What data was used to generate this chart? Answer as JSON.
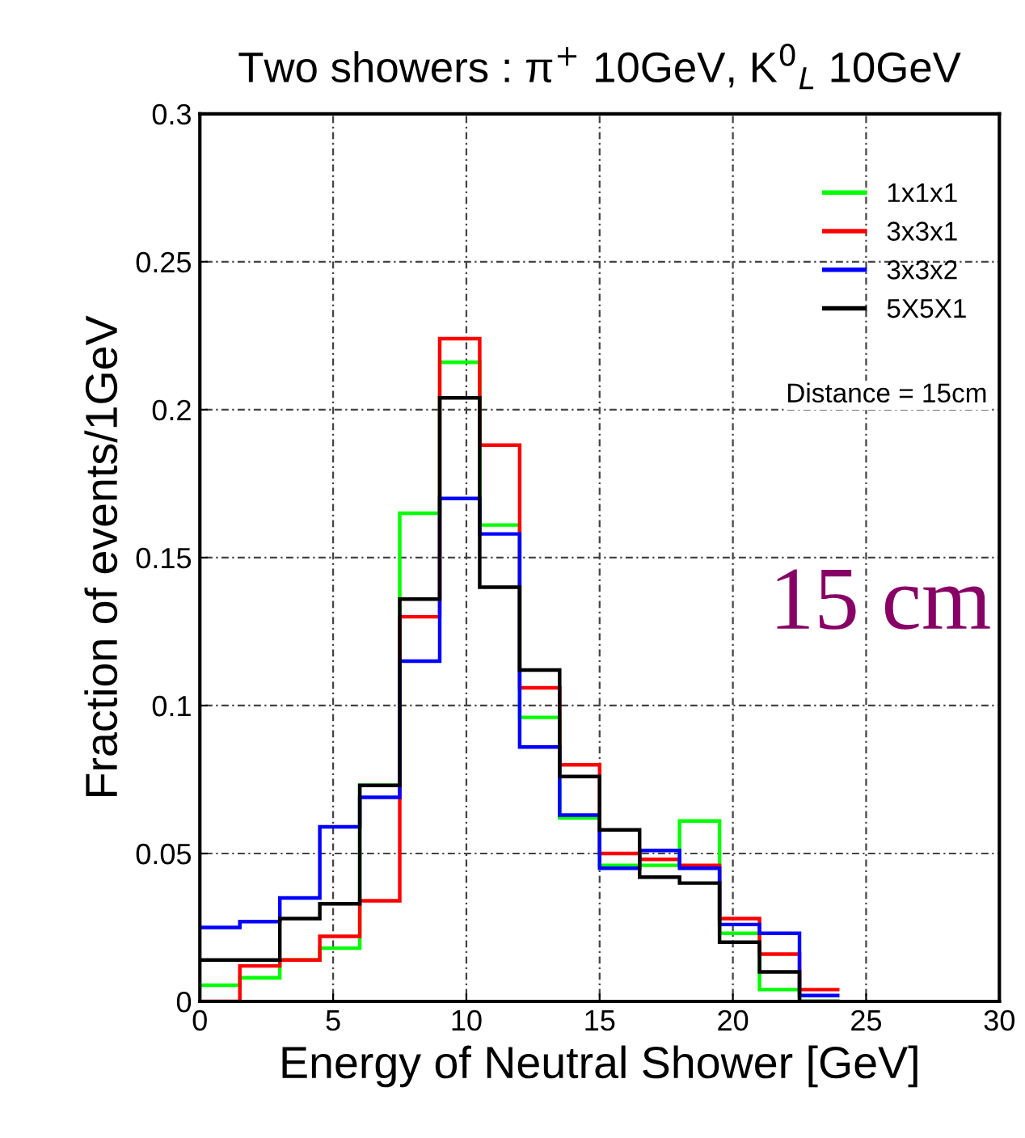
{
  "chart_data": {
    "type": "histogram",
    "title": "Two showers : π$^{+}$ 10GeV, K$^{0}$$_{L}$ 10GeV",
    "xlabel": "Energy of Neutral Shower [GeV]",
    "ylabel": "Fraction of events/1GeV",
    "bins": [
      0,
      1.5,
      3,
      4.5,
      6,
      7.5,
      9,
      10.5,
      12,
      13.5,
      15,
      16.5,
      18,
      19.5,
      21,
      22.5,
      24
    ],
    "series": [
      {
        "name": "1x1x1",
        "color": "#00ff00",
        "values": [
          0.0055,
          0.008,
          0.014,
          0.018,
          0.073,
          0.165,
          0.216,
          0.161,
          0.096,
          0.062,
          0.046,
          0.046,
          0.061,
          0.023,
          0.004,
          0
        ]
      },
      {
        "name": "3x3x1",
        "color": "#ff0000",
        "values": [
          0,
          0.012,
          0.014,
          0.022,
          0.034,
          0.13,
          0.224,
          0.188,
          0.106,
          0.08,
          0.05,
          0.048,
          0.046,
          0.028,
          0.016,
          0.004
        ]
      },
      {
        "name": "3x3x2",
        "color": "#0000ff",
        "values": [
          0.025,
          0.027,
          0.035,
          0.059,
          0.069,
          0.115,
          0.17,
          0.158,
          0.086,
          0.063,
          0.045,
          0.051,
          0.045,
          0.026,
          0.023,
          0.002
        ]
      },
      {
        "name": "5X5X1",
        "color": "#000000",
        "values": [
          0.014,
          0.014,
          0.028,
          0.033,
          0.073,
          0.136,
          0.204,
          0.14,
          0.112,
          0.076,
          0.058,
          0.042,
          0.04,
          0.02,
          0.01,
          0
        ]
      }
    ],
    "xlim": [
      0,
      30
    ],
    "ylim": [
      0,
      0.3
    ],
    "xticks": [
      0,
      5,
      10,
      15,
      20,
      25,
      30
    ],
    "yticks": [
      0,
      0.05,
      0.1,
      0.15,
      0.2,
      0.25,
      0.3
    ],
    "grid": true,
    "legend": "top right",
    "annotations": [
      "Distance = 15cm",
      "15 cm"
    ]
  }
}
